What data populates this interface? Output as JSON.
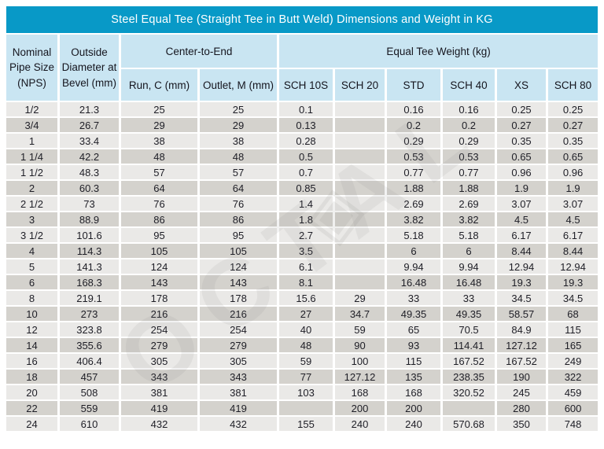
{
  "title": "Steel Equal Tee (Straight Tee in Butt Weld) Dimensions and Weight in KG",
  "colors": {
    "title_bar": "#0899c7",
    "title_text": "#ffffff",
    "header_bg": "#c9e5f2",
    "row_light": "#eae9e7",
    "row_dark": "#d4d2cd",
    "text": "#1e1e26"
  },
  "watermark": {
    "text": "OCTAL",
    "logo_glyph": "◈"
  },
  "table": {
    "header": {
      "nps": "Nominal\nPipe Size\n(NPS)",
      "outside_diameter": "Outside\nDiameter at\nBevel  (mm)",
      "center_to_end": "Center-to-End",
      "equal_tee_weight": "Equal Tee Weight  (kg)",
      "run": "Run, C  (mm)",
      "outlet": "Outlet, M  (mm)",
      "weight_cols": [
        "SCH 10S",
        "SCH 20",
        "STD",
        "SCH 40",
        "XS",
        "SCH 80"
      ]
    },
    "rows": [
      [
        "1/2",
        "21.3",
        "25",
        "25",
        "0.1",
        "",
        "0.16",
        "0.16",
        "0.25",
        "0.25"
      ],
      [
        "3/4",
        "26.7",
        "29",
        "29",
        "0.13",
        "",
        "0.2",
        "0.2",
        "0.27",
        "0.27"
      ],
      [
        "1",
        "33.4",
        "38",
        "38",
        "0.28",
        "",
        "0.29",
        "0.29",
        "0.35",
        "0.35"
      ],
      [
        "1 1/4",
        "42.2",
        "48",
        "48",
        "0.5",
        "",
        "0.53",
        "0.53",
        "0.65",
        "0.65"
      ],
      [
        "1 1/2",
        "48.3",
        "57",
        "57",
        "0.7",
        "",
        "0.77",
        "0.77",
        "0.96",
        "0.96"
      ],
      [
        "2",
        "60.3",
        "64",
        "64",
        "0.85",
        "",
        "1.88",
        "1.88",
        "1.9",
        "1.9"
      ],
      [
        "2 1/2",
        "73",
        "76",
        "76",
        "1.4",
        "",
        "2.69",
        "2.69",
        "3.07",
        "3.07"
      ],
      [
        "3",
        "88.9",
        "86",
        "86",
        "1.8",
        "",
        "3.82",
        "3.82",
        "4.5",
        "4.5"
      ],
      [
        "3 1/2",
        "101.6",
        "95",
        "95",
        "2.7",
        "",
        "5.18",
        "5.18",
        "6.17",
        "6.17"
      ],
      [
        "4",
        "114.3",
        "105",
        "105",
        "3.5",
        "",
        "6",
        "6",
        "8.44",
        "8.44"
      ],
      [
        "5",
        "141.3",
        "124",
        "124",
        "6.1",
        "",
        "9.94",
        "9.94",
        "12.94",
        "12.94"
      ],
      [
        "6",
        "168.3",
        "143",
        "143",
        "8.1",
        "",
        "16.48",
        "16.48",
        "19.3",
        "19.3"
      ],
      [
        "8",
        "219.1",
        "178",
        "178",
        "15.6",
        "29",
        "33",
        "33",
        "34.5",
        "34.5"
      ],
      [
        "10",
        "273",
        "216",
        "216",
        "27",
        "34.7",
        "49.35",
        "49.35",
        "58.57",
        "68"
      ],
      [
        "12",
        "323.8",
        "254",
        "254",
        "40",
        "59",
        "65",
        "70.5",
        "84.9",
        "115"
      ],
      [
        "14",
        "355.6",
        "279",
        "279",
        "48",
        "90",
        "93",
        "114.41",
        "127.12",
        "165"
      ],
      [
        "16",
        "406.4",
        "305",
        "305",
        "59",
        "100",
        "115",
        "167.52",
        "167.52",
        "249"
      ],
      [
        "18",
        "457",
        "343",
        "343",
        "77",
        "127.12",
        "135",
        "238.35",
        "190",
        "322"
      ],
      [
        "20",
        "508",
        "381",
        "381",
        "103",
        "168",
        "168",
        "320.52",
        "245",
        "459"
      ],
      [
        "22",
        "559",
        "419",
        "419",
        "",
        "200",
        "200",
        "",
        "280",
        "600"
      ],
      [
        "24",
        "610",
        "432",
        "432",
        "155",
        "240",
        "240",
        "570.68",
        "350",
        "748"
      ]
    ]
  }
}
